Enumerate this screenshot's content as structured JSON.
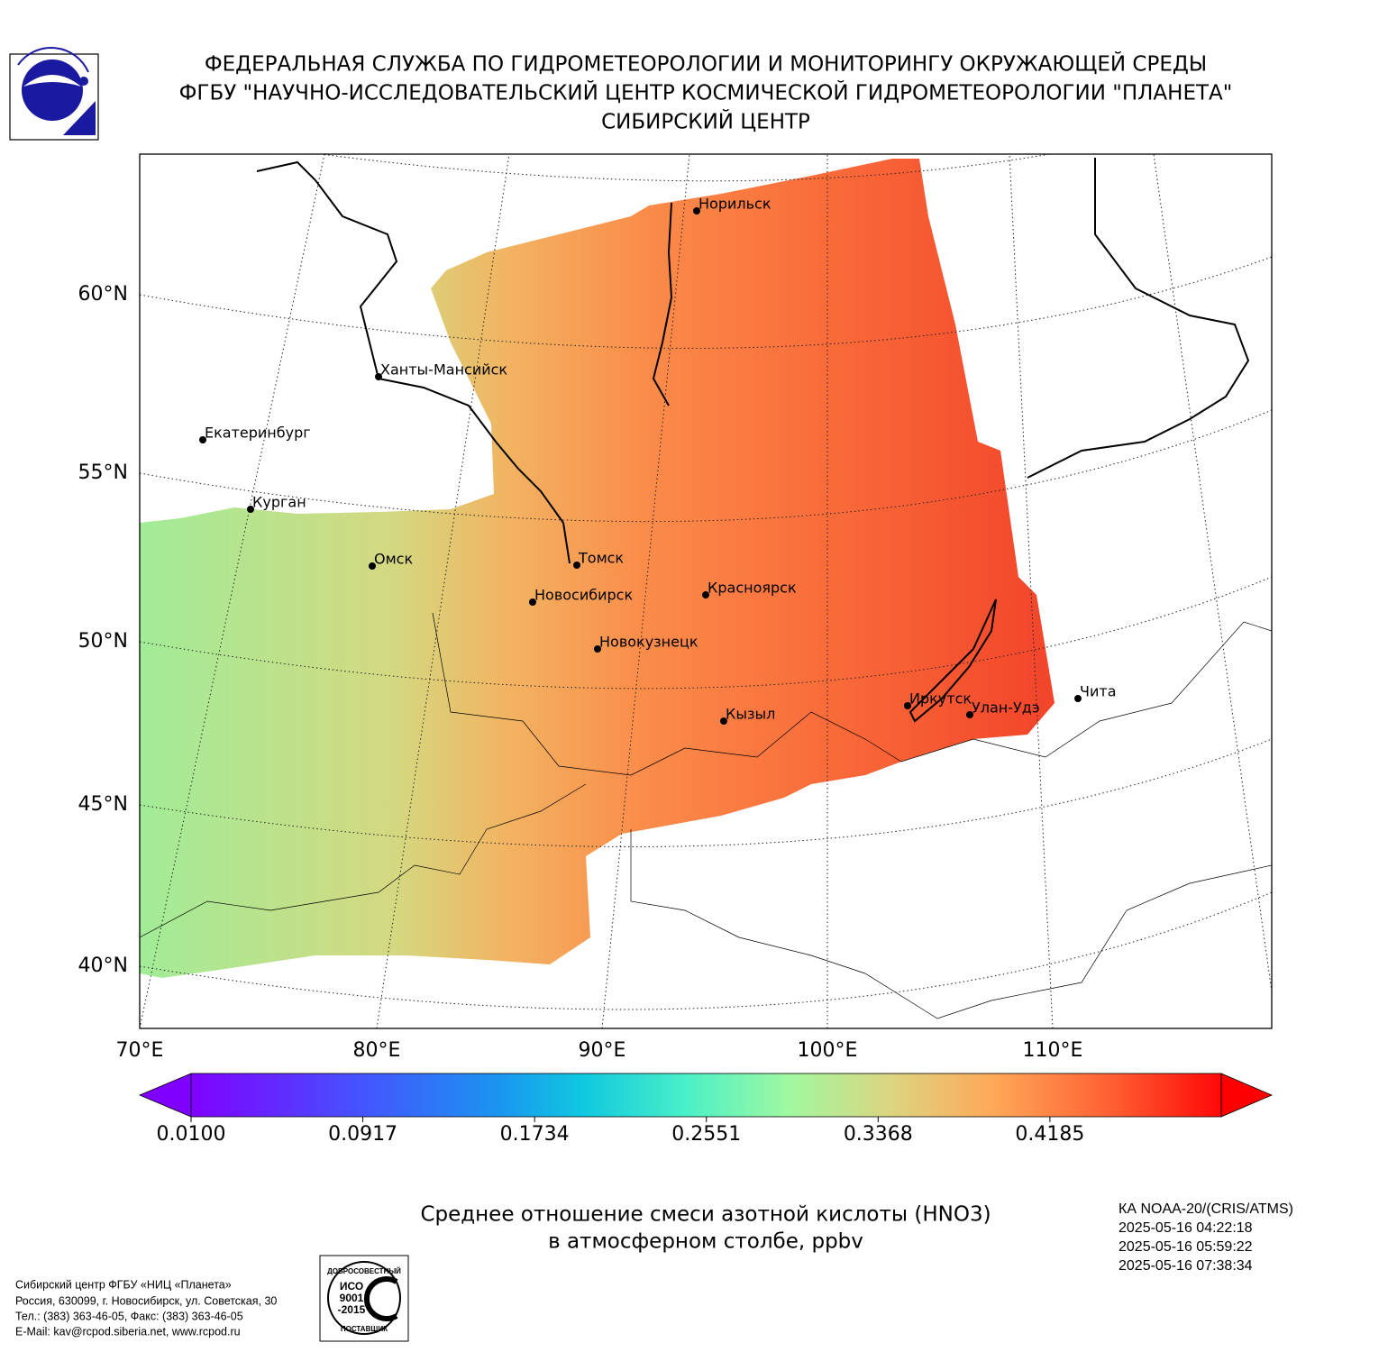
{
  "header": {
    "lines": [
      "ФЕДЕРАЛЬНАЯ СЛУЖБА ПО ГИДРОМЕТЕОРОЛОГИИ И МОНИТОРИНГУ ОКРУЖАЮЩЕЙ СРЕДЫ",
      "ФГБУ \"НАУЧНО-ИССЛЕДОВАТЕЛЬСКИЙ ЦЕНТР КОСМИЧЕСКОЙ ГИДРОМЕТЕОРОЛОГИИ \"ПЛАНЕТА\"",
      "СИБИРСКИЙ ЦЕНТР"
    ]
  },
  "map": {
    "lat_labels": [
      "60°N",
      "55°N",
      "50°N",
      "45°N",
      "40°N"
    ],
    "lon_labels": [
      "70°E",
      "80°E",
      "90°E",
      "100°E",
      "110°E"
    ],
    "cities": [
      "Норильск",
      "Ханты-Мансийск",
      "Екатеринбург",
      "Курган",
      "Омск",
      "Томск",
      "Новосибирск",
      "Красноярск",
      "Новокузнецк",
      "Кызыл",
      "Иркутск",
      "Улан-Удэ",
      "Чита"
    ]
  },
  "colorbar": {
    "range": [
      0.01,
      0.5
    ],
    "ticks": [
      {
        "value": 0.01,
        "label": "0.0100"
      },
      {
        "value": 0.0917,
        "label": "0.0917"
      },
      {
        "value": 0.1734,
        "label": "0.1734"
      },
      {
        "value": 0.2551,
        "label": "0.2551"
      },
      {
        "value": 0.3368,
        "label": "0.3368"
      },
      {
        "value": 0.4185,
        "label": "0.4185"
      }
    ]
  },
  "title": {
    "lines": [
      "Среднее отношение смеси азотной кислоты (HNO3)",
      "в атмосферном столбе, ppbv"
    ]
  },
  "satellite": {
    "lines": [
      "КА NOAA-20/(CRIS/ATMS)",
      "2025-05-16 04:22:18",
      "2025-05-16 05:59:22",
      "2025-05-16 07:38:34"
    ]
  },
  "footer": {
    "lines": [
      "Сибирский центр ФГБУ «НИЦ «Планета»",
      "Россия, 630099, г. Новосибирск, ул. Советская, 30",
      "Тел.: (383) 363-46-05, Факс: (383) 363-46-05",
      "E-Mail: kav@rcpod.siberia.net, www.rcpod.ru"
    ]
  },
  "iso_logo": {
    "top": "ДОБРОСОВЕСТНЫЙ",
    "lines": [
      "ИСО",
      "9001",
      "-2015"
    ],
    "bottom": "ПОСТАВЩИК"
  }
}
